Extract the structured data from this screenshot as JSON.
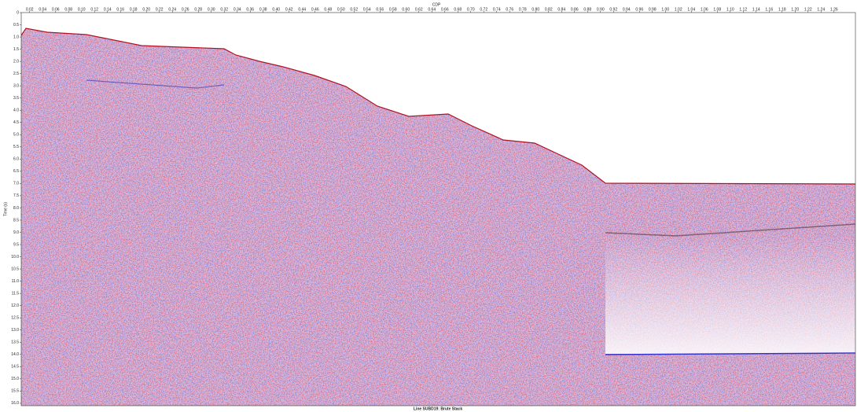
{
  "chart_data": {
    "type": "seismic",
    "title": "Line SUBD19: Brute Stack",
    "xlabel": "CDP",
    "ylabel": "Time (s)",
    "xlim": [
      0.007,
      1.293
    ],
    "ylim": [
      0,
      16.1
    ],
    "xticks": [
      0.02,
      0.04,
      0.06,
      0.08,
      {
        "value": 0.1,
        "label": "0.10"
      },
      0.12,
      0.14,
      0.16,
      0.18,
      {
        "value": 0.2,
        "label": "0.20"
      },
      0.22,
      0.24,
      0.26,
      0.28,
      {
        "value": 0.3,
        "label": "0.30"
      },
      0.32,
      0.34,
      0.36,
      0.38,
      {
        "value": 0.4,
        "label": "0.40"
      },
      0.42,
      0.44,
      0.46,
      0.48,
      {
        "value": 0.5,
        "label": "0.50"
      },
      0.52,
      0.54,
      0.56,
      0.58,
      {
        "value": 0.6,
        "label": "0.60"
      },
      0.62,
      0.64,
      0.66,
      0.68,
      {
        "value": 0.7,
        "label": "0.70"
      },
      0.72,
      0.74,
      0.76,
      0.78,
      {
        "value": 0.8,
        "label": "0.80"
      },
      0.82,
      0.84,
      0.86,
      0.88,
      {
        "value": 0.9,
        "label": "0.90"
      },
      0.92,
      0.94,
      0.96,
      0.98,
      {
        "value": 1,
        "label": "1.00"
      },
      1.02,
      1.04,
      1.06,
      1.08,
      {
        "value": 1.1,
        "label": "1.10"
      },
      1.12,
      1.14,
      1.16,
      1.18,
      {
        "value": 1.2,
        "label": "1.20"
      },
      1.22,
      1.24,
      1.26
    ],
    "yticks": [
      0,
      0.5,
      {
        "value": 1,
        "label": "1.0"
      },
      1.5,
      {
        "value": 2,
        "label": "2.0"
      },
      2.5,
      {
        "value": 3,
        "label": "3.0"
      },
      3.5,
      {
        "value": 4,
        "label": "4.0"
      },
      4.5,
      {
        "value": 5,
        "label": "5.0"
      },
      5.5,
      {
        "value": 6,
        "label": "6.0"
      },
      6.5,
      {
        "value": 7,
        "label": "7.0"
      },
      7.5,
      {
        "value": 8,
        "label": "8.0"
      },
      8.5,
      {
        "value": 9,
        "label": "9.0"
      },
      9.5,
      {
        "value": 10,
        "label": "10.0"
      },
      10.5,
      {
        "value": 11,
        "label": "11.0"
      },
      11.5,
      {
        "value": 12,
        "label": "12.0"
      },
      12.5,
      {
        "value": 13,
        "label": "13.0"
      },
      13.5,
      {
        "value": 14,
        "label": "14.0"
      },
      14.5,
      {
        "value": 15,
        "label": "15.0"
      },
      15.5,
      {
        "value": 16,
        "label": "16.0"
      }
    ]
  }
}
